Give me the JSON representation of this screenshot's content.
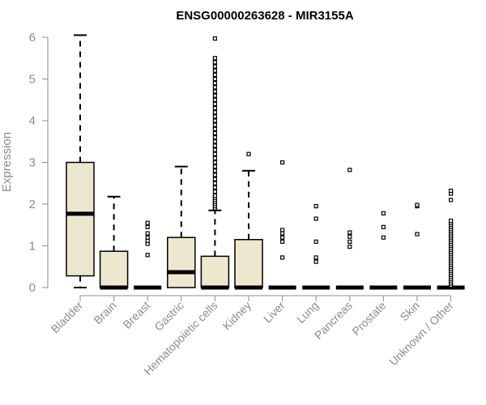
{
  "chart_data": {
    "type": "boxplot",
    "title": "ENSG00000263628 - MIR3155A",
    "xlabel": "",
    "ylabel": "Expression",
    "ylim": [
      0,
      6
    ],
    "yticks": [
      0,
      1,
      2,
      3,
      4,
      5,
      6
    ],
    "box_fill": "#ede7cf",
    "categories": [
      "Bladder",
      "Brain",
      "Breast",
      "Gastric",
      "Hematopoietic cells",
      "Kidney",
      "Liver",
      "Lung",
      "Pancreas",
      "Prostate",
      "Skin",
      "Unknown / Other"
    ],
    "boxes": [
      {
        "category": "Bladder",
        "min": 0,
        "q1": 0.28,
        "median": 1.77,
        "q3": 3.0,
        "max": 6.05,
        "outliers": []
      },
      {
        "category": "Brain",
        "min": 0,
        "q1": 0,
        "median": 0,
        "q3": 0.87,
        "max": 2.18,
        "outliers": []
      },
      {
        "category": "Breast",
        "min": 0,
        "q1": 0,
        "median": 0,
        "q3": 0,
        "max": 0,
        "outliers": [
          0.78,
          1.05,
          1.12,
          1.2,
          1.3,
          1.45,
          1.55
        ]
      },
      {
        "category": "Gastric",
        "min": 0,
        "q1": 0,
        "median": 0.37,
        "q3": 1.2,
        "max": 2.9,
        "outliers": []
      },
      {
        "category": "Hematopoietic cells",
        "min": 0,
        "q1": 0,
        "median": 0,
        "q3": 0.75,
        "max": 1.85,
        "outliers": [
          1.9,
          1.95,
          2.0,
          2.05,
          2.1,
          2.15,
          2.2,
          2.3,
          2.4,
          2.5,
          2.6,
          2.7,
          2.8,
          2.9,
          3.0,
          3.1,
          3.2,
          3.3,
          3.4,
          3.5,
          3.6,
          3.7,
          3.8,
          3.9,
          4.0,
          4.1,
          4.2,
          4.3,
          4.4,
          4.5,
          4.6,
          4.7,
          4.8,
          4.9,
          5.0,
          5.1,
          5.2,
          5.3,
          5.4,
          5.5,
          5.97
        ]
      },
      {
        "category": "Kidney",
        "min": 0,
        "q1": 0,
        "median": 0,
        "q3": 1.15,
        "max": 2.8,
        "outliers": [
          3.2
        ]
      },
      {
        "category": "Liver",
        "min": 0,
        "q1": 0,
        "median": 0,
        "q3": 0,
        "max": 0,
        "outliers": [
          0.72,
          1.1,
          1.2,
          1.3,
          1.38,
          3.0
        ]
      },
      {
        "category": "Lung",
        "min": 0,
        "q1": 0,
        "median": 0,
        "q3": 0,
        "max": 0,
        "outliers": [
          0.62,
          0.72,
          1.1,
          1.65,
          1.95
        ]
      },
      {
        "category": "Pancreas",
        "min": 0,
        "q1": 0,
        "median": 0,
        "q3": 0,
        "max": 0,
        "outliers": [
          0.98,
          1.1,
          1.22,
          1.32,
          2.82
        ]
      },
      {
        "category": "Prostate",
        "min": 0,
        "q1": 0,
        "median": 0,
        "q3": 0,
        "max": 0,
        "outliers": [
          1.2,
          1.45,
          1.78
        ]
      },
      {
        "category": "Skin",
        "min": 0,
        "q1": 0,
        "median": 0,
        "q3": 0,
        "max": 0,
        "outliers": [
          1.28,
          1.95,
          1.98
        ]
      },
      {
        "category": "Unknown / Other",
        "min": 0,
        "q1": 0,
        "median": 0,
        "q3": 0,
        "max": 0,
        "outliers": [
          0.05,
          0.1,
          0.15,
          0.2,
          0.25,
          0.3,
          0.35,
          0.4,
          0.45,
          0.5,
          0.55,
          0.6,
          0.65,
          0.7,
          0.75,
          0.8,
          0.85,
          0.9,
          0.95,
          1.0,
          1.05,
          1.1,
          1.15,
          1.2,
          1.25,
          1.3,
          1.35,
          1.4,
          1.45,
          1.5,
          1.55,
          1.6,
          2.1,
          2.25,
          2.32
        ]
      }
    ]
  }
}
